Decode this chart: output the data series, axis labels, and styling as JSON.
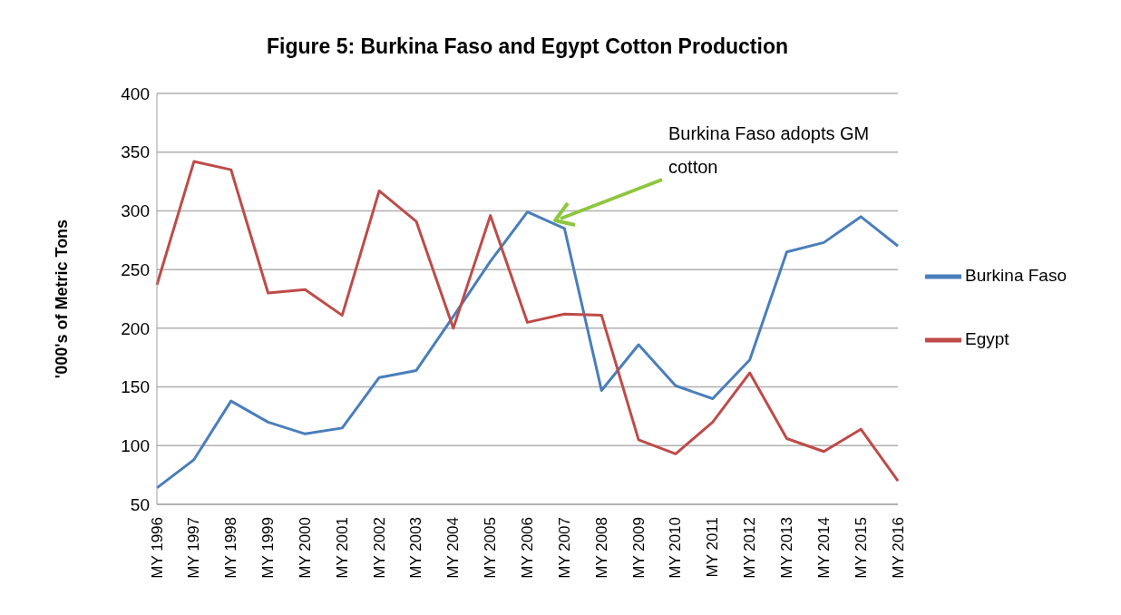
{
  "chart_data": {
    "type": "line",
    "title": "Figure 5: Burkina Faso and Egypt Cotton Production",
    "ylabel": "'000's of Metric Tons",
    "categories": [
      "MY 1996",
      "MY 1997",
      "MY 1998",
      "MY 1999",
      "MY 2000",
      "MY 2001",
      "MY 2002",
      "MY 2003",
      "MY 2004",
      "MY 2005",
      "MY 2006",
      "MY 2007",
      "MY 2008",
      "MY 2009",
      "MY 2010",
      "MY 2011",
      "MY 2012",
      "MY 2013",
      "MY 2014",
      "MY 2015",
      "MY 2016"
    ],
    "series": [
      {
        "name": "Burkina Faso",
        "color": "#4a7ebb",
        "values": [
          64,
          88,
          138,
          120,
          110,
          115,
          158,
          164,
          210,
          257,
          299,
          285,
          147,
          186,
          151,
          140,
          173,
          265,
          273,
          295,
          270
        ]
      },
      {
        "name": "Egypt",
        "color": "#be4b48",
        "values": [
          237,
          342,
          335,
          230,
          233,
          211,
          317,
          291,
          200,
          296,
          205,
          212,
          211,
          105,
          93,
          120,
          162,
          106,
          95,
          114,
          70
        ]
      }
    ],
    "ylim": [
      50,
      400
    ],
    "yticks": [
      50,
      100,
      150,
      200,
      250,
      300,
      350,
      400
    ],
    "grid": "y",
    "legend": "right",
    "marker": "none",
    "line_style": "solid",
    "annotations": [
      "Burkina Faso adopts GM cotton"
    ]
  }
}
